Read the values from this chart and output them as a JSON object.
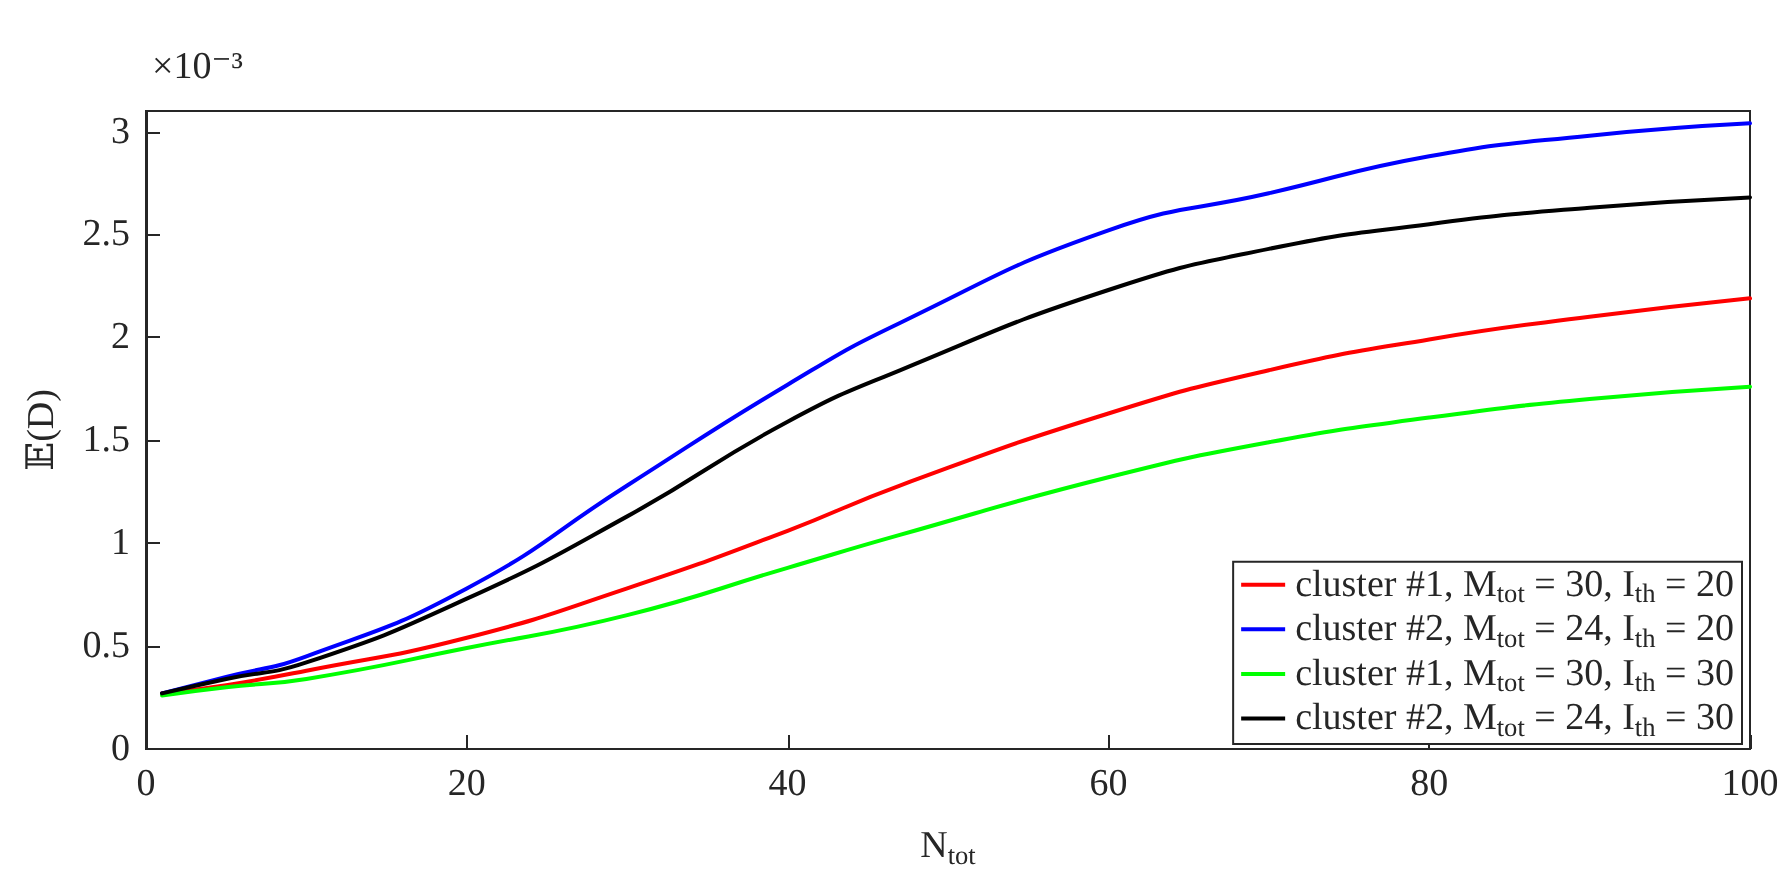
{
  "chart_data": {
    "type": "line",
    "xlabel": "N$_{tot}$",
    "ylabel": "𝔼(D)",
    "annotations": [
      "×10⁻³"
    ],
    "x": [
      1,
      5,
      10,
      20,
      30,
      40,
      47,
      60,
      70,
      80,
      90,
      100
    ],
    "series": [
      {
        "name": "cluster #1, M$_{tot}$ = 30, I$_{th}$ = 20",
        "color": "#ff0000",
        "values": [
          0.27,
          0.31,
          0.38,
          0.54,
          0.78,
          1.06,
          1.28,
          1.63,
          1.84,
          1.99,
          2.1,
          2.19
        ]
      },
      {
        "name": "cluster #2, M$_{tot}$ = 24, I$_{th}$ = 20",
        "color": "#0000ff",
        "values": [
          0.27,
          0.35,
          0.45,
          0.78,
          1.28,
          1.77,
          2.07,
          2.52,
          2.7,
          2.88,
          2.98,
          3.04
        ]
      },
      {
        "name": "cluster #1, M$_{tot}$ = 30, I$_{th}$ = 30",
        "color": "#00ff00",
        "values": [
          0.26,
          0.3,
          0.34,
          0.49,
          0.65,
          0.88,
          1.04,
          1.32,
          1.49,
          1.61,
          1.7,
          1.76
        ]
      },
      {
        "name": "cluster #2, M$_{tot}$ = 24, I$_{th}$ = 30",
        "color": "#000000",
        "values": [
          0.27,
          0.34,
          0.42,
          0.73,
          1.13,
          1.59,
          1.84,
          2.23,
          2.43,
          2.55,
          2.63,
          2.68
        ]
      }
    ],
    "xlim": [
      0,
      100
    ],
    "xticks": [
      0,
      20,
      40,
      60,
      80,
      100
    ],
    "ylim": [
      0,
      3.1
    ],
    "yticks": [
      0,
      0.5,
      1,
      1.5,
      2,
      2.5,
      3
    ],
    "grid": false,
    "legend": "bottom right",
    "marker": "none",
    "line_style": "solid"
  }
}
